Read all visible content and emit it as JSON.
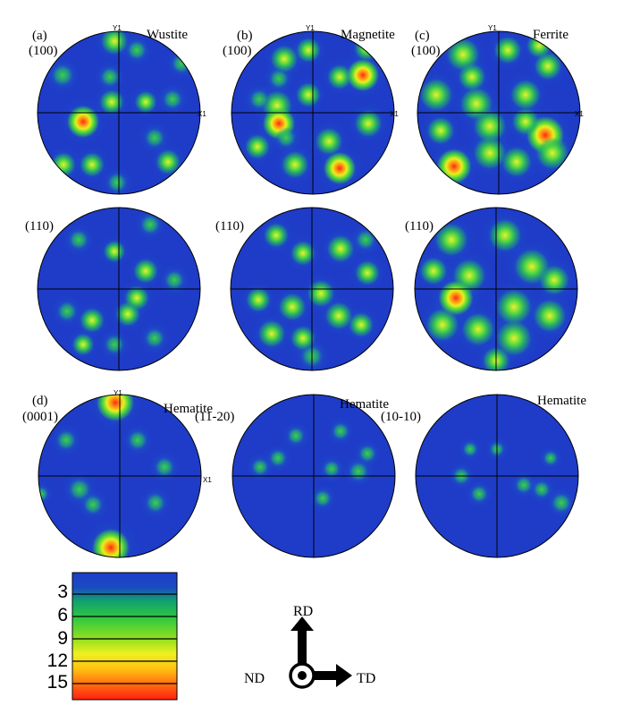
{
  "panels": [
    {
      "panel_label": "(a)",
      "plane": "(100)",
      "phase": "Wustite",
      "axis_y": "Y1",
      "axis_x": "X1"
    },
    {
      "panel_label": "(b)",
      "plane": "(100)",
      "phase": "Magnetite",
      "axis_y": "Y1",
      "axis_x": "X1"
    },
    {
      "panel_label": "(c)",
      "plane": "(100)",
      "phase": "Ferrite",
      "axis_y": "Y1",
      "axis_x": "X1"
    },
    {
      "plane": "(110)"
    },
    {
      "plane": "(110)"
    },
    {
      "plane": "(110)"
    },
    {
      "panel_label": "(d)",
      "plane": "(0001)",
      "phase": "Hematite",
      "axis_y": "Y1",
      "axis_x": "X1"
    },
    {
      "plane": "(11-20)",
      "phase": "Hematite"
    },
    {
      "plane": "(10-10)",
      "phase": "Hematite"
    }
  ],
  "legend": {
    "ticks": [
      "3",
      "6",
      "9",
      "12",
      "15"
    ],
    "colors": [
      "#1e3cc8",
      "#10a060",
      "#40d030",
      "#c8e820",
      "#ffc000",
      "#ff5020"
    ]
  },
  "directions": {
    "rd": "RD",
    "nd": "ND",
    "td": "TD"
  },
  "colors": {
    "background": "#1e3cc8",
    "outline": "#000000",
    "low": "#2244d8",
    "mid": "#22cc33",
    "high": "#eeee22",
    "peak": "#ee2222"
  }
}
